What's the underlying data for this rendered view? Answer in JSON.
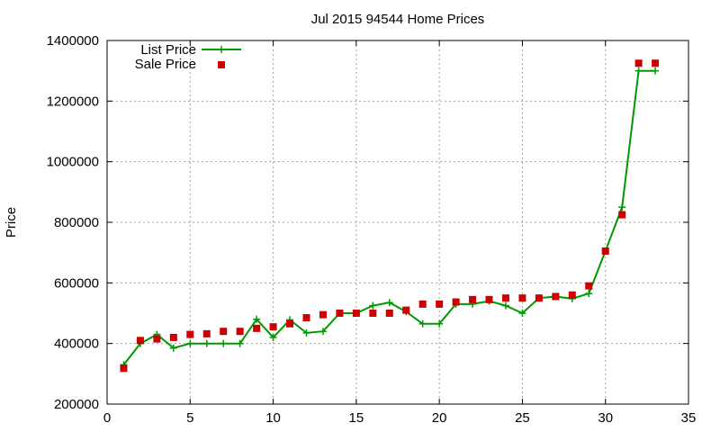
{
  "chart_data": {
    "type": "line",
    "title": "Jul 2015 94544 Home Prices",
    "xlabel": "",
    "ylabel": "Price",
    "xlim": [
      0,
      35
    ],
    "ylim": [
      200000,
      1400000
    ],
    "x_ticks": [
      0,
      5,
      10,
      15,
      20,
      25,
      30,
      35
    ],
    "y_ticks": [
      200000,
      400000,
      600000,
      800000,
      1000000,
      1200000,
      1400000
    ],
    "grid": true,
    "legend_position": "top-left",
    "x": [
      1,
      2,
      3,
      4,
      5,
      6,
      7,
      8,
      9,
      10,
      11,
      12,
      13,
      14,
      15,
      16,
      17,
      18,
      19,
      20,
      21,
      22,
      23,
      24,
      25,
      26,
      27,
      28,
      29,
      30,
      31,
      32,
      33
    ],
    "series": [
      {
        "name": "List Price",
        "style": "linespoints",
        "color": "#009900",
        "values": [
          330000,
          400000,
          430000,
          385000,
          400000,
          400000,
          400000,
          400000,
          480000,
          420000,
          478000,
          435000,
          440000,
          500000,
          500000,
          525000,
          535000,
          505000,
          465000,
          465000,
          530000,
          530000,
          540000,
          525000,
          500000,
          550000,
          555000,
          548000,
          565000,
          705000,
          850000,
          1300000,
          1300000
        ]
      },
      {
        "name": "Sale Price",
        "style": "points",
        "color": "#cc0000",
        "values": [
          318000,
          410000,
          415000,
          420000,
          430000,
          432000,
          440000,
          440000,
          450000,
          455000,
          465000,
          485000,
          495000,
          500000,
          500000,
          500000,
          500000,
          510000,
          530000,
          530000,
          537000,
          545000,
          545000,
          550000,
          550000,
          550000,
          555000,
          560000,
          590000,
          705000,
          825000,
          1325000,
          1325000
        ]
      }
    ]
  }
}
